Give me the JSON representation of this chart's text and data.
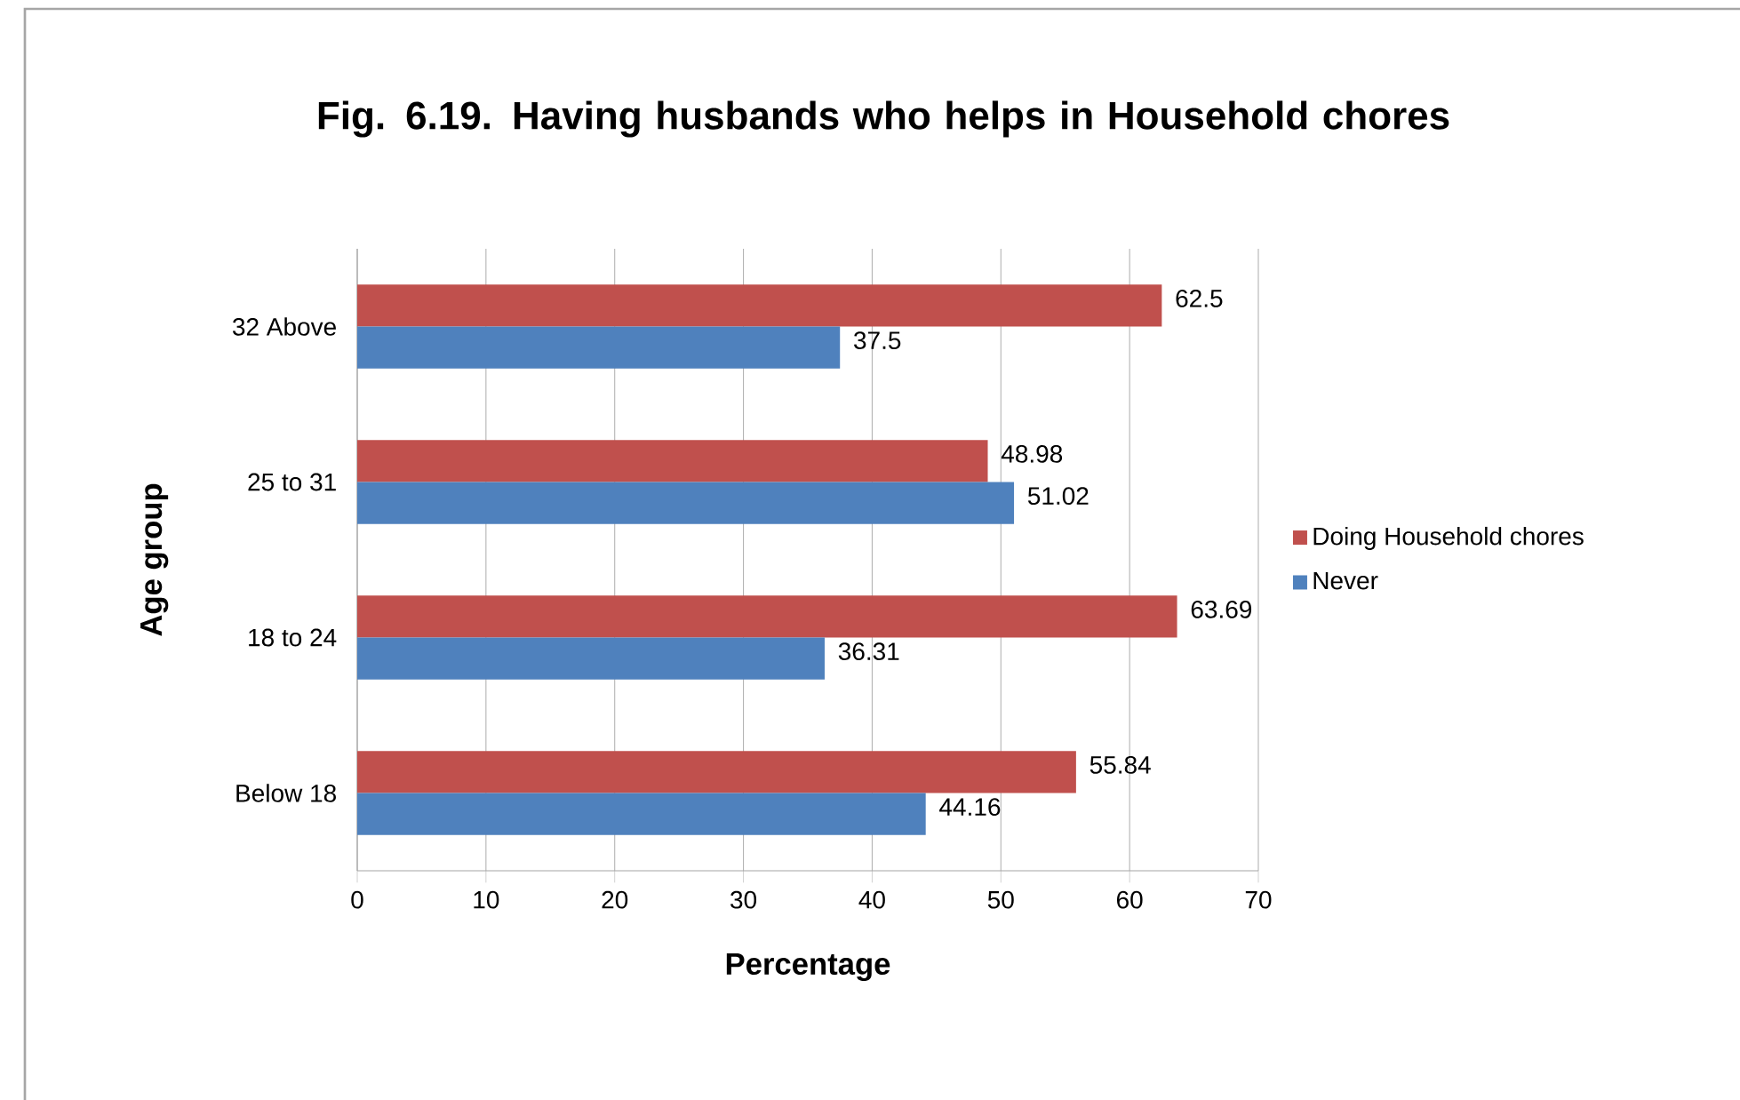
{
  "chart_data": {
    "type": "bar",
    "orientation": "horizontal",
    "title": "Fig. 6.19. Having husbands who helps in Household chores",
    "xlabel": "Percentage",
    "ylabel": "Age group",
    "categories": [
      "32 Above",
      "25 to 31",
      "18 to 24",
      "Below 18"
    ],
    "series": [
      {
        "name": "Doing Household chores",
        "color": "#c0504d",
        "values": [
          62.5,
          48.98,
          63.69,
          55.84
        ]
      },
      {
        "name": "Never",
        "color": "#4f81bd",
        "values": [
          37.5,
          51.02,
          36.31,
          44.16
        ]
      }
    ],
    "xlim": [
      0,
      70
    ],
    "xticks": [
      0,
      10,
      20,
      30,
      40,
      50,
      60,
      70
    ],
    "grid": "x",
    "legend": "right",
    "data_labels": true
  }
}
